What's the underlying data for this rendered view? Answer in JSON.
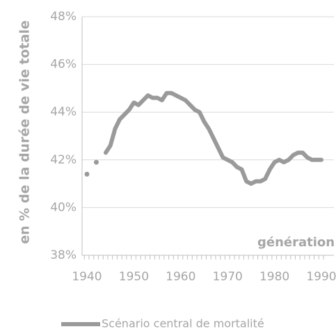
{
  "chart_data": {
    "type": "line",
    "y_axis_label": "en % de la durée de vie totale",
    "annotation": "génération",
    "x": [
      1940,
      1941,
      1942,
      1943,
      1944,
      1945,
      1946,
      1947,
      1948,
      1949,
      1950,
      1951,
      1952,
      1953,
      1954,
      1955,
      1956,
      1957,
      1958,
      1959,
      1960,
      1961,
      1962,
      1963,
      1964,
      1965,
      1966,
      1967,
      1968,
      1969,
      1970,
      1971,
      1972,
      1973,
      1974,
      1975,
      1976,
      1977,
      1978,
      1979,
      1980,
      1981,
      1982,
      1983,
      1984,
      1985,
      1986,
      1987,
      1988,
      1989,
      1990
    ],
    "series": [
      {
        "name": "Scénario central de mortalité",
        "color": "#9a9a9a",
        "values": [
          41.4,
          null,
          41.9,
          null,
          42.3,
          42.6,
          43.3,
          43.7,
          43.9,
          44.1,
          44.4,
          44.3,
          44.5,
          44.7,
          44.6,
          44.6,
          44.5,
          44.8,
          44.8,
          44.7,
          44.6,
          44.5,
          44.3,
          44.1,
          44.0,
          43.6,
          43.3,
          42.9,
          42.5,
          42.1,
          42.0,
          41.9,
          41.7,
          41.6,
          41.1,
          41.0,
          41.1,
          41.1,
          41.2,
          41.6,
          41.9,
          42.0,
          41.9,
          42.0,
          42.2,
          42.3,
          42.3,
          42.1,
          42.0,
          42.0,
          42.0
        ]
      }
    ],
    "xlim": [
      1940,
      1990
    ],
    "xticks": [
      1940,
      1950,
      1960,
      1970,
      1980,
      1990
    ],
    "ylim": [
      38,
      48
    ],
    "yticks": [
      {
        "value": 38,
        "label": "38%"
      },
      {
        "value": 40,
        "label": "40%"
      },
      {
        "value": 42,
        "label": "42%"
      },
      {
        "value": 44,
        "label": "44%"
      },
      {
        "value": 46,
        "label": "46%"
      },
      {
        "value": 48,
        "label": "48%"
      }
    ],
    "grid": true
  }
}
